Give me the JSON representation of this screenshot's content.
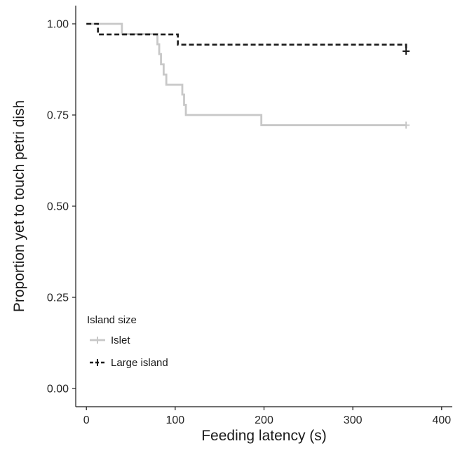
{
  "chart_data": {
    "type": "line",
    "subtype": "survival-step",
    "xlabel": "Feeding latency (s)",
    "ylabel": "Proportion yet to touch petri dish",
    "xlim": [
      -12,
      412
    ],
    "ylim": [
      -0.05,
      1.05
    ],
    "x_ticks": [
      0,
      100,
      200,
      300,
      400
    ],
    "x_tick_labels": [
      "0",
      "100",
      "200",
      "300",
      "400"
    ],
    "y_ticks": [
      0,
      0.25,
      0.5,
      0.75,
      1
    ],
    "y_tick_labels": [
      "0.00",
      "0.25",
      "0.50",
      "0.75",
      "1.00"
    ],
    "grid": false,
    "legend": {
      "title": "Island size",
      "placement": "bottom-left"
    },
    "series": [
      {
        "name": "Islet",
        "color": "#c8c8c8",
        "style": "solid",
        "points": [
          [
            0,
            1.0
          ],
          [
            40,
            1.0
          ],
          [
            40,
            0.972
          ],
          [
            80,
            0.972
          ],
          [
            80,
            0.944
          ],
          [
            82,
            0.944
          ],
          [
            82,
            0.917
          ],
          [
            84,
            0.917
          ],
          [
            84,
            0.889
          ],
          [
            87,
            0.889
          ],
          [
            87,
            0.861
          ],
          [
            90,
            0.861
          ],
          [
            90,
            0.833
          ],
          [
            108,
            0.833
          ],
          [
            108,
            0.806
          ],
          [
            110,
            0.806
          ],
          [
            110,
            0.778
          ],
          [
            112,
            0.778
          ],
          [
            112,
            0.75
          ],
          [
            197,
            0.75
          ],
          [
            197,
            0.722
          ],
          [
            360,
            0.722
          ]
        ],
        "censored": [
          [
            360,
            0.722
          ]
        ]
      },
      {
        "name": "Large island",
        "color": "#1a1a1a",
        "style": "dashed",
        "points": [
          [
            0,
            1.0
          ],
          [
            13,
            1.0
          ],
          [
            13,
            0.971
          ],
          [
            103,
            0.971
          ],
          [
            103,
            0.943
          ],
          [
            360,
            0.943
          ],
          [
            360,
            0.925
          ]
        ],
        "censored": [
          [
            360,
            0.925
          ]
        ]
      }
    ]
  }
}
